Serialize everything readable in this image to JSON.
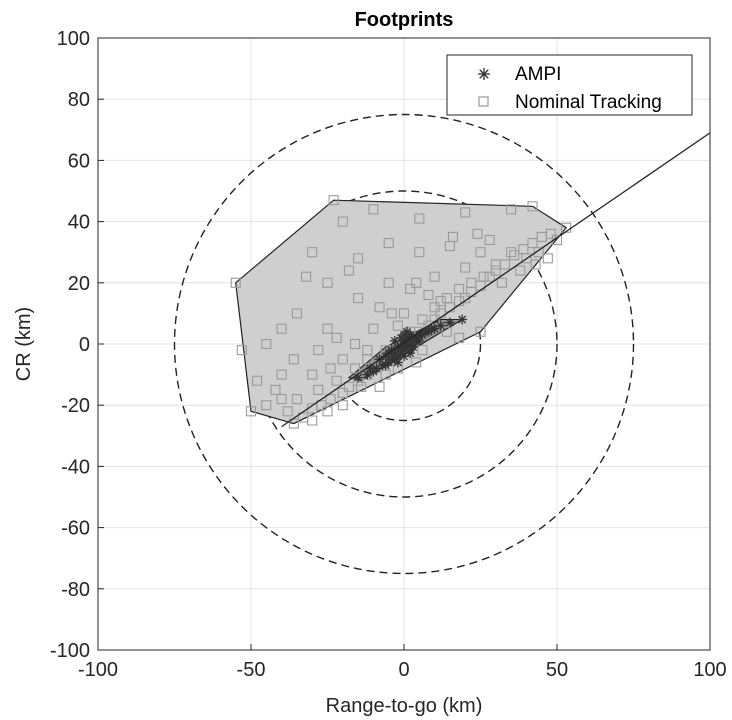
{
  "chart_data": {
    "type": "scatter",
    "title": "Footprints",
    "xlabel": "Range-to-go (km)",
    "ylabel": "CR (km)",
    "xlim": [
      -100,
      100
    ],
    "ylim": [
      -100,
      100
    ],
    "xticks": [
      -100,
      -50,
      0,
      50,
      100
    ],
    "yticks": [
      -100,
      -80,
      -60,
      -40,
      -20,
      0,
      20,
      40,
      60,
      80,
      100
    ],
    "xtick_labels": [
      "-100",
      "-50",
      "0",
      "50",
      "100"
    ],
    "ytick_labels": [
      "-100",
      "-80",
      "-60",
      "-40",
      "-20",
      "0",
      "20",
      "40",
      "60",
      "80",
      "100"
    ],
    "grid": true,
    "legend_position": "top-right",
    "colors": {
      "ampi": "#333333",
      "nominal": "#9a9a9a",
      "hull_fill": "#cfcfcf",
      "inner_hull_fill": "#8a8a8a"
    },
    "circles": [
      {
        "center": [
          0,
          0
        ],
        "radius": 25,
        "style": "dashed"
      },
      {
        "center": [
          0,
          0
        ],
        "radius": 50,
        "style": "dashed"
      },
      {
        "center": [
          0,
          0
        ],
        "radius": 75,
        "style": "dashed"
      }
    ],
    "reference_line": {
      "from": [
        -40,
        -27
      ],
      "to": [
        100,
        69
      ]
    },
    "series": [
      {
        "name": "AMPI",
        "marker": "asterisk",
        "hull": [
          [
            -18,
            -11
          ],
          [
            -14,
            -12
          ],
          [
            19,
            8
          ],
          [
            12,
            8
          ],
          [
            -6,
            -1
          ]
        ],
        "points": [
          [
            -3,
            -3
          ],
          [
            -2,
            -4
          ],
          [
            0,
            -2
          ],
          [
            1,
            0
          ],
          [
            2,
            1
          ],
          [
            3,
            2
          ],
          [
            -1,
            -1
          ],
          [
            -4,
            -5
          ],
          [
            -5,
            -6
          ],
          [
            0,
            1
          ],
          [
            1,
            -1
          ],
          [
            2,
            -2
          ],
          [
            4,
            2
          ],
          [
            5,
            3
          ],
          [
            -2,
            -1
          ],
          [
            -1,
            -3
          ],
          [
            0,
            0
          ],
          [
            2,
            3
          ],
          [
            3,
            0
          ],
          [
            -3,
            -5
          ],
          [
            -6,
            -4
          ],
          [
            6,
            3
          ],
          [
            7,
            4
          ],
          [
            -7,
            -7
          ],
          [
            -9,
            -8
          ],
          [
            -10,
            -9
          ],
          [
            -12,
            -10
          ],
          [
            -15,
            -11
          ],
          [
            -8,
            -5
          ],
          [
            1,
            2
          ],
          [
            3,
            -1
          ],
          [
            4,
            1
          ],
          [
            -4,
            -2
          ],
          [
            0,
            -4
          ],
          [
            -1,
            2
          ],
          [
            1,
            4
          ],
          [
            8,
            4
          ],
          [
            10,
            5
          ],
          [
            12,
            6
          ],
          [
            15,
            7
          ],
          [
            19,
            8
          ],
          [
            -2,
            -6
          ],
          [
            -5,
            -3
          ],
          [
            2,
            -3
          ],
          [
            -3,
            1
          ],
          [
            0,
            3
          ],
          [
            5,
            1
          ],
          [
            -6,
            -7
          ],
          [
            -11,
            -8
          ],
          [
            9,
            5
          ]
        ]
      },
      {
        "name": "Nominal Tracking",
        "marker": "square",
        "hull": [
          [
            -55,
            20
          ],
          [
            -23,
            47
          ],
          [
            42,
            45
          ],
          [
            53,
            38
          ],
          [
            25,
            4
          ],
          [
            -36,
            -26
          ],
          [
            -50,
            -22
          ]
        ],
        "points": [
          [
            -55,
            20
          ],
          [
            -23,
            47
          ],
          [
            42,
            45
          ],
          [
            53,
            38
          ],
          [
            25,
            4
          ],
          [
            -36,
            -26
          ],
          [
            -50,
            -22
          ],
          [
            -53,
            -2
          ],
          [
            -45,
            0
          ],
          [
            -40,
            -10
          ],
          [
            -38,
            -22
          ],
          [
            -33,
            -24
          ],
          [
            -30,
            -21
          ],
          [
            -27,
            -20
          ],
          [
            -24,
            -18
          ],
          [
            -20,
            -16
          ],
          [
            -18,
            -14
          ],
          [
            -15,
            -12
          ],
          [
            -12,
            -10
          ],
          [
            -10,
            -8
          ],
          [
            -8,
            -6
          ],
          [
            -5,
            -4
          ],
          [
            -2,
            -2
          ],
          [
            0,
            0
          ],
          [
            3,
            2
          ],
          [
            5,
            4
          ],
          [
            8,
            6
          ],
          [
            10,
            8
          ],
          [
            12,
            10
          ],
          [
            15,
            12
          ],
          [
            18,
            14
          ],
          [
            20,
            15
          ],
          [
            22,
            17
          ],
          [
            25,
            19
          ],
          [
            28,
            22
          ],
          [
            30,
            24
          ],
          [
            33,
            26
          ],
          [
            36,
            29
          ],
          [
            39,
            31
          ],
          [
            42,
            33
          ],
          [
            45,
            35
          ],
          [
            48,
            36
          ],
          [
            -42,
            -15
          ],
          [
            -35,
            -18
          ],
          [
            -28,
            -15
          ],
          [
            -22,
            -12
          ],
          [
            -16,
            -8
          ],
          [
            -12,
            -5
          ],
          [
            -6,
            -2
          ],
          [
            2,
            4
          ],
          [
            6,
            8
          ],
          [
            10,
            12
          ],
          [
            14,
            15
          ],
          [
            18,
            18
          ],
          [
            22,
            20
          ],
          [
            26,
            22
          ],
          [
            30,
            26
          ],
          [
            35,
            30
          ],
          [
            40,
            28
          ],
          [
            44,
            30
          ],
          [
            -30,
            30
          ],
          [
            -20,
            40
          ],
          [
            -10,
            44
          ],
          [
            5,
            41
          ],
          [
            20,
            43
          ],
          [
            35,
            44
          ],
          [
            -25,
            20
          ],
          [
            -15,
            28
          ],
          [
            -5,
            33
          ],
          [
            5,
            30
          ],
          [
            15,
            32
          ],
          [
            25,
            30
          ],
          [
            -35,
            10
          ],
          [
            -25,
            5
          ],
          [
            -15,
            15
          ],
          [
            -5,
            20
          ],
          [
            10,
            22
          ],
          [
            20,
            25
          ],
          [
            -45,
            -20
          ],
          [
            -40,
            -18
          ],
          [
            -30,
            -10
          ],
          [
            -20,
            -5
          ],
          [
            -10,
            5
          ],
          [
            0,
            10
          ],
          [
            -18,
            24
          ],
          [
            -8,
            12
          ],
          [
            2,
            18
          ],
          [
            12,
            14
          ],
          [
            -28,
            -2
          ],
          [
            -22,
            2
          ],
          [
            -12,
            -2
          ],
          [
            -2,
            6
          ],
          [
            8,
            16
          ],
          [
            -32,
            22
          ],
          [
            -40,
            5
          ],
          [
            -48,
            -12
          ],
          [
            28,
            34
          ],
          [
            32,
            20
          ],
          [
            38,
            24
          ],
          [
            43,
            26
          ],
          [
            47,
            28
          ],
          [
            50,
            34
          ],
          [
            -14,
            -14
          ],
          [
            -20,
            -20
          ],
          [
            -25,
            -22
          ],
          [
            -30,
            -25
          ],
          [
            -4,
            10
          ],
          [
            4,
            20
          ],
          [
            16,
            35
          ],
          [
            24,
            36
          ],
          [
            -8,
            -14
          ],
          [
            -2,
            -8
          ],
          [
            6,
            -2
          ],
          [
            14,
            4
          ],
          [
            -36,
            -5
          ],
          [
            -24,
            -8
          ],
          [
            -16,
            0
          ],
          [
            -6,
            -10
          ],
          [
            4,
            -6
          ],
          [
            18,
            2
          ]
        ]
      }
    ]
  }
}
